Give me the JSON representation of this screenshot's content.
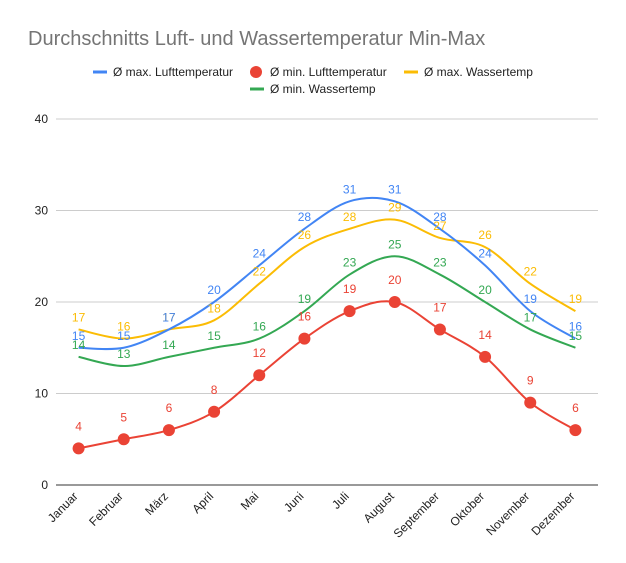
{
  "chart_data": {
    "type": "line",
    "title": "Durchschnitts Luft- und Wassertemperatur Min-Max",
    "xlabel": "",
    "ylabel": "",
    "ylim": [
      0,
      40
    ],
    "yticks": [
      "0",
      "10",
      "20",
      "30",
      "40"
    ],
    "grid": true,
    "legend_position": "top",
    "categories": [
      "Januar",
      "Februar",
      "März",
      "April",
      "Mai",
      "Juni",
      "Juli",
      "August",
      "September",
      "Oktober",
      "November",
      "Dezember"
    ],
    "series": [
      {
        "name": "Ø max. Lufttemperatur",
        "color": "#4285F4",
        "marker": "none",
        "values": [
          15,
          15,
          17,
          20,
          24,
          28,
          31,
          31,
          28,
          24,
          19,
          16
        ]
      },
      {
        "name": "Ø min. Lufttemperatur",
        "color": "#EA4335",
        "marker": "circle",
        "values": [
          4,
          5,
          6,
          8,
          12,
          16,
          19,
          20,
          17,
          14,
          9,
          6
        ]
      },
      {
        "name": "Ø max. Wassertemp",
        "color": "#FBBC04",
        "marker": "none",
        "values": [
          17,
          16,
          17,
          18,
          22,
          26,
          28,
          29,
          27,
          26,
          22,
          19
        ]
      },
      {
        "name": "Ø min. Wassertemp",
        "color": "#34A853",
        "marker": "none",
        "values": [
          14,
          13,
          14,
          15,
          16,
          19,
          23,
          25,
          23,
          20,
          17,
          15
        ]
      }
    ]
  }
}
